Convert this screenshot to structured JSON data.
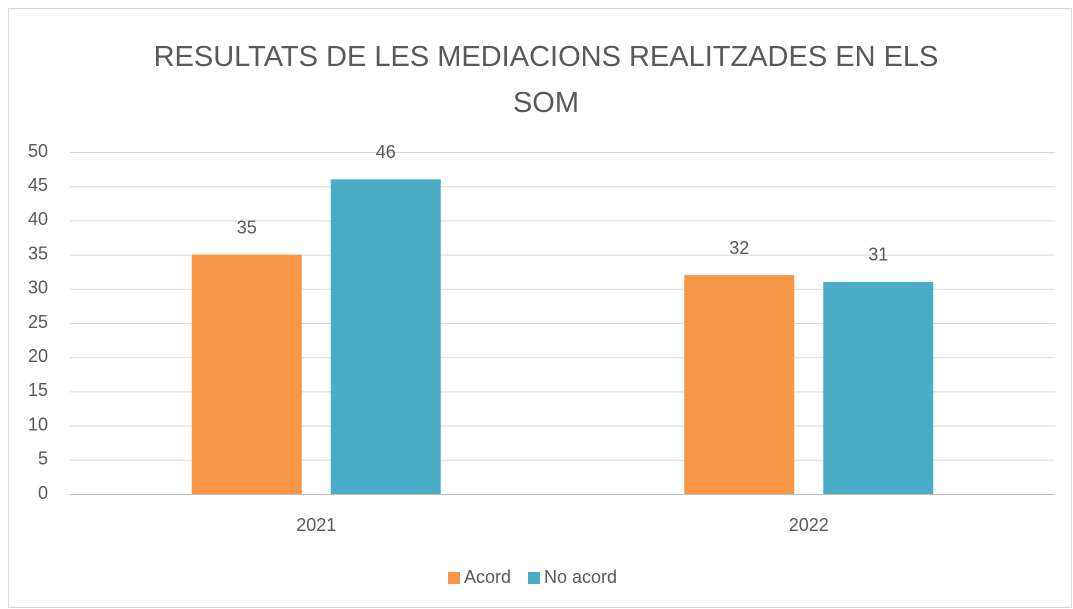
{
  "chart_data": {
    "type": "bar",
    "title": "RESULTATS DE LES MEDIACIONS REALITZADES EN ELS SOM",
    "categories": [
      "2021",
      "2022"
    ],
    "series": [
      {
        "name": "Acord",
        "color": "#f79646",
        "values": [
          35,
          32
        ]
      },
      {
        "name": "No acord",
        "color": "#4bacc6",
        "values": [
          46,
          31
        ]
      }
    ],
    "ylim": [
      0,
      50
    ],
    "yticks": [
      0,
      5,
      10,
      15,
      20,
      25,
      30,
      35,
      40,
      45,
      50
    ],
    "grid": true,
    "legend": "bottom"
  }
}
